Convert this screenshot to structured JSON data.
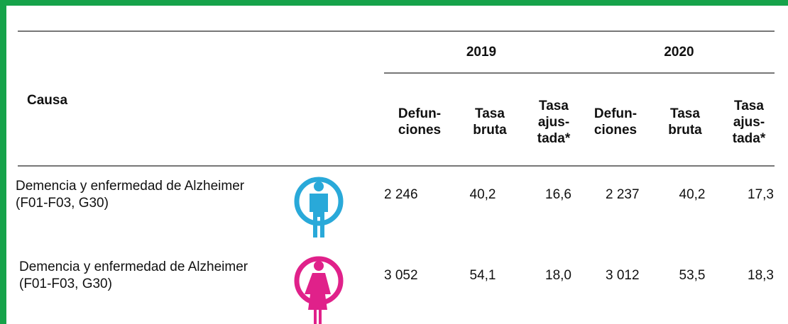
{
  "header": {
    "cause": "Causa",
    "years": [
      "2019",
      "2020"
    ],
    "columns": [
      "Defun-\nciones",
      "Tasa\nbruta",
      "Tasa\najus-\ntada*",
      "Defun-\nciones",
      "Tasa\nbruta",
      "Tasa\najus-\ntada*"
    ]
  },
  "rows": [
    {
      "cause": "Demencia y enfermedad de Alzheimer\n(F01-F03, G30)",
      "values": [
        "2 246",
        "40,2",
        "16,6",
        "2 237",
        "40,2",
        "17,3"
      ]
    },
    {
      "cause": "Demencia y enfermedad de Alzheimer\n(F01-F03, G30)",
      "values": [
        "3 052",
        "54,1",
        "18,0",
        "3 012",
        "53,5",
        "18,3"
      ]
    }
  ]
}
